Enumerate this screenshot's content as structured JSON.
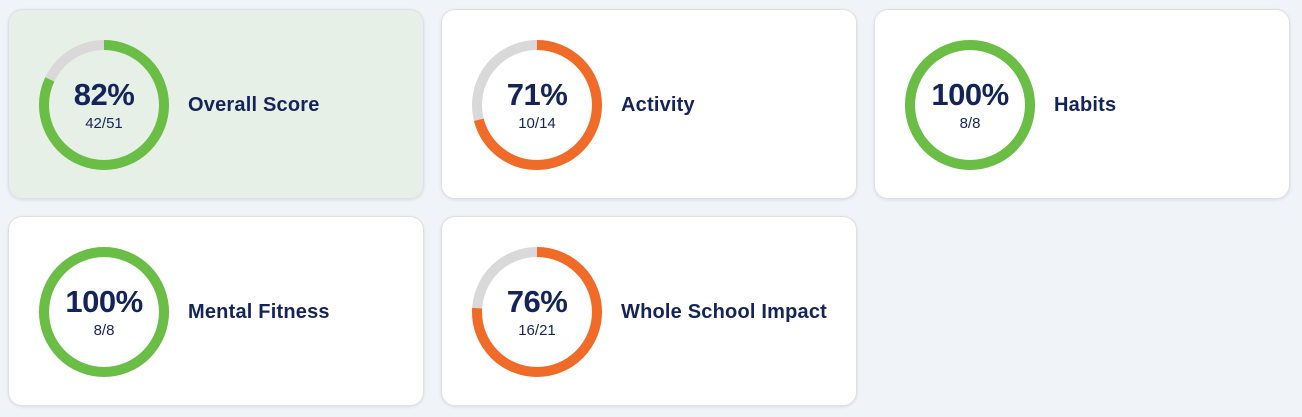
{
  "colors": {
    "good": "#6abd45",
    "warn": "#ef6b27",
    "track": "#d9d9d9",
    "text": "#14245a",
    "highlight_bg": "#e6f0e6"
  },
  "cards": [
    {
      "label": "Overall Score",
      "percent_text": "82%",
      "fraction_text": "42/51",
      "progress": 0.82,
      "status": "good",
      "highlighted": true
    },
    {
      "label": "Activity",
      "percent_text": "71%",
      "fraction_text": "10/14",
      "progress": 0.71,
      "status": "warn",
      "highlighted": false
    },
    {
      "label": "Habits",
      "percent_text": "100%",
      "fraction_text": "8/8",
      "progress": 1.0,
      "status": "good",
      "highlighted": false
    },
    {
      "label": "Mental Fitness",
      "percent_text": "100%",
      "fraction_text": "8/8",
      "progress": 1.0,
      "status": "good",
      "highlighted": false
    },
    {
      "label": "Whole School Impact",
      "percent_text": "76%",
      "fraction_text": "16/21",
      "progress": 0.76,
      "status": "warn",
      "highlighted": false
    }
  ]
}
